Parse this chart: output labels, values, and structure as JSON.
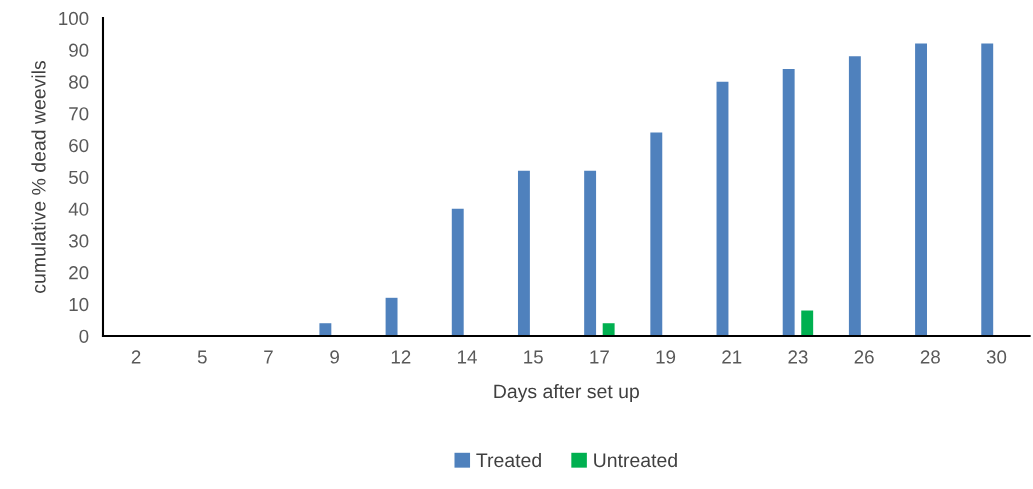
{
  "chart_data": {
    "type": "bar",
    "xlabel": "Days after set up",
    "ylabel": "cumulative % dead weevils",
    "categories": [
      "2",
      "5",
      "7",
      "9",
      "12",
      "14",
      "15",
      "17",
      "19",
      "21",
      "23",
      "26",
      "28",
      "30"
    ],
    "series": [
      {
        "name": "Treated",
        "color": "#4f81bd",
        "values": [
          0,
          0,
          0,
          4,
          12,
          40,
          52,
          52,
          64,
          80,
          84,
          88,
          92,
          92
        ]
      },
      {
        "name": "Untreated",
        "color": "#00b050",
        "values": [
          0,
          0,
          0,
          0,
          0,
          0,
          0,
          4,
          0,
          0,
          8,
          0,
          0,
          0
        ]
      }
    ],
    "ylim": [
      0,
      100
    ],
    "yticks": [
      0,
      10,
      20,
      30,
      40,
      50,
      60,
      70,
      80,
      90,
      100
    ],
    "grid": false,
    "legend": "bottom"
  }
}
